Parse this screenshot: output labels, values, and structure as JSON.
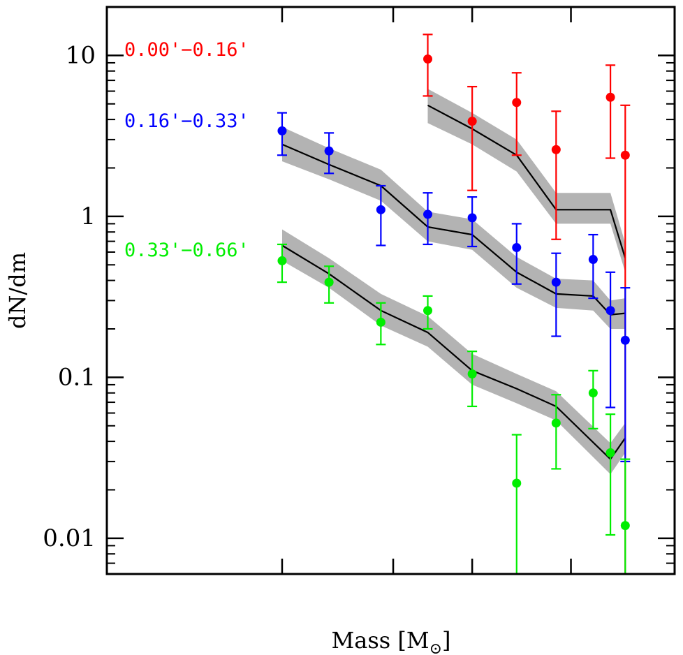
{
  "chart_data": {
    "type": "scatter",
    "title": "",
    "xlabel": "Mass [M",
    "xlabel_sub": "⊙",
    "xlabel_close": "]",
    "ylabel": "dN/dm",
    "yscale": "log",
    "ylim": [
      0.006,
      20
    ],
    "xlim": [
      0,
      11.5
    ],
    "yticks": [
      {
        "value": 10,
        "label": "10"
      },
      {
        "value": 1,
        "label": "1"
      },
      {
        "value": 0.1,
        "label": "0.1"
      },
      {
        "value": 0.01,
        "label": "0.01"
      }
    ],
    "xticks": [
      3.55,
      5.8,
      7.4,
      9.4
    ],
    "series": [
      {
        "name": "0.00'−0.16'",
        "color": "#ff0000",
        "points": [
          {
            "x": 6.5,
            "y": 9.5,
            "lo": 5.6,
            "hi": 13.5
          },
          {
            "x": 7.4,
            "y": 3.9,
            "lo": 1.45,
            "hi": 6.4
          },
          {
            "x": 8.3,
            "y": 5.1,
            "lo": 2.4,
            "hi": 7.8
          },
          {
            "x": 9.1,
            "y": 2.6,
            "lo": 0.72,
            "hi": 4.5
          },
          {
            "x": 10.2,
            "y": 5.5,
            "lo": 2.3,
            "hi": 8.7
          },
          {
            "x": 10.5,
            "y": 2.4,
            "lo": 0.006,
            "hi": 4.9
          }
        ],
        "model": [
          {
            "x": 6.5,
            "y": 4.9,
            "band": [
              3.8,
              6.2
            ]
          },
          {
            "x": 7.4,
            "y": 3.5,
            "band": [
              2.8,
              4.4
            ]
          },
          {
            "x": 8.3,
            "y": 2.4,
            "band": [
              1.9,
              3.0
            ]
          },
          {
            "x": 9.1,
            "y": 1.1,
            "band": [
              0.9,
              1.4
            ]
          },
          {
            "x": 10.2,
            "y": 1.1,
            "band": [
              0.9,
              1.4
            ]
          },
          {
            "x": 10.5,
            "y": 0.55,
            "band": [
              0.45,
              0.68
            ]
          }
        ]
      },
      {
        "name": "0.16'−0.33'",
        "color": "#0000ff",
        "points": [
          {
            "x": 3.55,
            "y": 3.4,
            "lo": 2.4,
            "hi": 4.4
          },
          {
            "x": 4.5,
            "y": 2.55,
            "lo": 1.85,
            "hi": 3.3
          },
          {
            "x": 5.55,
            "y": 1.1,
            "lo": 0.66,
            "hi": 1.55
          },
          {
            "x": 6.5,
            "y": 1.03,
            "lo": 0.67,
            "hi": 1.4
          },
          {
            "x": 7.4,
            "y": 0.98,
            "lo": 0.65,
            "hi": 1.32
          },
          {
            "x": 8.3,
            "y": 0.64,
            "lo": 0.38,
            "hi": 0.9
          },
          {
            "x": 9.1,
            "y": 0.39,
            "lo": 0.18,
            "hi": 0.59
          },
          {
            "x": 9.85,
            "y": 0.54,
            "lo": 0.31,
            "hi": 0.77
          },
          {
            "x": 10.2,
            "y": 0.26,
            "lo": 0.065,
            "hi": 0.45
          },
          {
            "x": 10.5,
            "y": 0.17,
            "lo": 0.03,
            "hi": 0.36
          }
        ],
        "model": [
          {
            "x": 3.55,
            "y": 2.8,
            "band": [
              2.2,
              3.6
            ]
          },
          {
            "x": 4.5,
            "y": 2.1,
            "band": [
              1.7,
              2.65
            ]
          },
          {
            "x": 5.55,
            "y": 1.55,
            "band": [
              1.25,
              1.95
            ]
          },
          {
            "x": 6.5,
            "y": 0.86,
            "band": [
              0.7,
              1.07
            ]
          },
          {
            "x": 7.4,
            "y": 0.77,
            "band": [
              0.62,
              0.96
            ]
          },
          {
            "x": 8.3,
            "y": 0.45,
            "band": [
              0.36,
              0.56
            ]
          },
          {
            "x": 9.1,
            "y": 0.33,
            "band": [
              0.27,
              0.41
            ]
          },
          {
            "x": 9.85,
            "y": 0.32,
            "band": [
              0.26,
              0.4
            ]
          },
          {
            "x": 10.2,
            "y": 0.245,
            "band": [
              0.2,
              0.3
            ]
          },
          {
            "x": 10.5,
            "y": 0.25,
            "band": [
              0.2,
              0.31
            ]
          }
        ]
      },
      {
        "name": "0.33'−0.66'",
        "color": "#00ee00",
        "points": [
          {
            "x": 3.55,
            "y": 0.53,
            "lo": 0.39,
            "hi": 0.67
          },
          {
            "x": 4.5,
            "y": 0.39,
            "lo": 0.29,
            "hi": 0.49
          },
          {
            "x": 5.55,
            "y": 0.22,
            "lo": 0.16,
            "hi": 0.29
          },
          {
            "x": 6.5,
            "y": 0.26,
            "lo": 0.2,
            "hi": 0.32
          },
          {
            "x": 7.4,
            "y": 0.105,
            "lo": 0.066,
            "hi": 0.145
          },
          {
            "x": 8.3,
            "y": 0.022,
            "lo": 0.006,
            "hi": 0.044
          },
          {
            "x": 9.1,
            "y": 0.052,
            "lo": 0.027,
            "hi": 0.078
          },
          {
            "x": 9.85,
            "y": 0.08,
            "lo": 0.048,
            "hi": 0.11
          },
          {
            "x": 10.2,
            "y": 0.034,
            "lo": 0.0105,
            "hi": 0.059
          },
          {
            "x": 10.5,
            "y": 0.012,
            "lo": 0.006,
            "hi": 0.031
          }
        ],
        "model": [
          {
            "x": 3.55,
            "y": 0.66,
            "band": [
              0.53,
              0.83
            ]
          },
          {
            "x": 4.5,
            "y": 0.44,
            "band": [
              0.36,
              0.55
            ]
          },
          {
            "x": 5.55,
            "y": 0.26,
            "band": [
              0.21,
              0.33
            ]
          },
          {
            "x": 6.5,
            "y": 0.19,
            "band": [
              0.155,
              0.24
            ]
          },
          {
            "x": 7.4,
            "y": 0.11,
            "band": [
              0.09,
              0.14
            ]
          },
          {
            "x": 8.3,
            "y": 0.085,
            "band": [
              0.069,
              0.105
            ]
          },
          {
            "x": 9.1,
            "y": 0.066,
            "band": [
              0.054,
              0.082
            ]
          },
          {
            "x": 10.2,
            "y": 0.031,
            "band": [
              0.025,
              0.039
            ]
          },
          {
            "x": 10.5,
            "y": 0.042,
            "band": [
              0.034,
              0.052
            ]
          }
        ]
      }
    ]
  }
}
